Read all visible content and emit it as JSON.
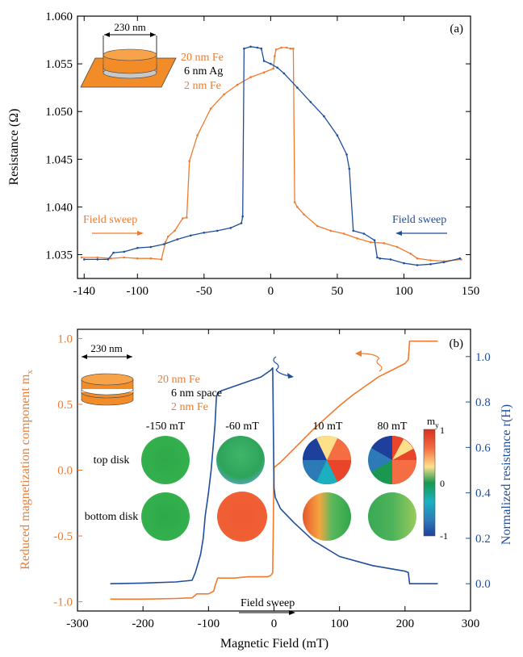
{
  "colors": {
    "orange": "#f07a2e",
    "blue": "#1f4e9c",
    "axis": "#000000",
    "disk_edge": "#444444"
  },
  "chart_data": [
    {
      "type": "line",
      "panel_label": "(a)",
      "ylabel": "Resistance (Ω)",
      "xlabel": "",
      "xlim": [
        -145,
        150
      ],
      "ylim": [
        1.0325,
        1.06
      ],
      "x_ticks": [
        -140,
        -100,
        -50,
        0,
        50,
        100,
        150
      ],
      "x_tick_labels": [
        "-140",
        "-100",
        "-50",
        "0",
        "50",
        "100",
        "150"
      ],
      "y_ticks": [
        1.035,
        1.04,
        1.045,
        1.05,
        1.055,
        1.06
      ],
      "y_tick_labels": [
        "1.035",
        "1.040",
        "1.045",
        "1.050",
        "1.055",
        "1.060"
      ],
      "grid": false,
      "series": [
        {
          "color": "orange",
          "x": [
            -142,
            -130,
            -120,
            -110,
            -100,
            -90,
            -82,
            -79,
            -77,
            -72,
            -66,
            -63,
            -61,
            -55,
            -45,
            -35,
            -25,
            -15,
            -5,
            2,
            3,
            4,
            8,
            12,
            15,
            17,
            18,
            20,
            25,
            35,
            45,
            55,
            65,
            75,
            85,
            95,
            105,
            110,
            120,
            130,
            143
          ],
          "y": [
            1.0347,
            1.0347,
            1.0346,
            1.0347,
            1.0346,
            1.0346,
            1.0345,
            1.0363,
            1.0369,
            1.0375,
            1.0388,
            1.0389,
            1.0448,
            1.0475,
            1.0503,
            1.0518,
            1.0528,
            1.0536,
            1.0541,
            1.0545,
            1.0558,
            1.0565,
            1.0567,
            1.0567,
            1.0566,
            1.0566,
            1.0405,
            1.04,
            1.0392,
            1.038,
            1.0375,
            1.0372,
            1.0367,
            1.0363,
            1.0362,
            1.0358,
            1.0351,
            1.0346,
            1.0344,
            1.0343,
            1.0345
          ]
        },
        {
          "color": "blue",
          "x": [
            -140,
            -130,
            -122,
            -118,
            -110,
            -100,
            -90,
            -80,
            -70,
            -60,
            -50,
            -40,
            -30,
            -22,
            -21,
            -20,
            -15,
            -10,
            -7,
            -5,
            0,
            5,
            10,
            20,
            30,
            40,
            50,
            57,
            59,
            62,
            70,
            78,
            80,
            82,
            90,
            100,
            110,
            120,
            130,
            142
          ],
          "y": [
            1.0345,
            1.0345,
            1.0345,
            1.0352,
            1.0353,
            1.0357,
            1.0358,
            1.0361,
            1.0366,
            1.037,
            1.0373,
            1.0375,
            1.0378,
            1.0383,
            1.039,
            1.0566,
            1.0568,
            1.0567,
            1.0566,
            1.0553,
            1.055,
            1.0546,
            1.054,
            1.0525,
            1.051,
            1.0495,
            1.0475,
            1.0455,
            1.044,
            1.0375,
            1.0372,
            1.0365,
            1.0347,
            1.0346,
            1.0345,
            1.0341,
            1.0339,
            1.034,
            1.0342,
            1.0346
          ]
        }
      ],
      "annotations": {
        "dimension": "230 nm",
        "layers": [
          "20 nm Fe",
          "6 nm Ag",
          "2 nm Fe"
        ],
        "sweep_left": "Field sweep",
        "sweep_right": "Field sweep"
      }
    },
    {
      "type": "line",
      "panel_label": "(b)",
      "xlabel": "Magnetic Field (mT)",
      "ylabel_left": "Reduced magnetization component m",
      "ylabel_left_sub": "x",
      "ylabel_right": "Normalized resistance r(H)",
      "xlim": [
        -300,
        300
      ],
      "ylim_left": [
        -1.07,
        1.07
      ],
      "ylim_right": [
        -0.12,
        1.12
      ],
      "x_ticks": [
        -300,
        -200,
        -100,
        0,
        100,
        200,
        300
      ],
      "x_tick_labels": [
        "-300",
        "-200",
        "-100",
        "0",
        "100",
        "200",
        "300"
      ],
      "y_ticks_left": [
        -1.0,
        -0.5,
        0.0,
        0.5,
        1.0
      ],
      "y_tick_labels_left": [
        "-1.0",
        "-0.5",
        "0.0",
        "0.5",
        "1.0"
      ],
      "y_ticks_right": [
        0.0,
        0.2,
        0.4,
        0.6,
        0.8,
        1.0
      ],
      "y_tick_labels_right": [
        "0.0",
        "0.2",
        "0.4",
        "0.6",
        "0.8",
        "1.0"
      ],
      "grid": false,
      "series": [
        {
          "color": "orange",
          "axis": "left",
          "x": [
            -250,
            -200,
            -150,
            -125,
            -120,
            -118,
            -100,
            -92,
            -90,
            -86,
            -80,
            -60,
            -40,
            -20,
            -10,
            -5,
            -2,
            0,
            10,
            20,
            40,
            60,
            80,
            100,
            120,
            140,
            160,
            180,
            200,
            205,
            207,
            210,
            230,
            250
          ],
          "y": [
            -0.98,
            -0.98,
            -0.975,
            -0.97,
            -0.95,
            -0.94,
            -0.94,
            -0.92,
            -0.88,
            -0.82,
            -0.82,
            -0.82,
            -0.81,
            -0.81,
            -0.81,
            -0.8,
            -0.78,
            0.02,
            0.06,
            0.11,
            0.21,
            0.31,
            0.4,
            0.49,
            0.57,
            0.64,
            0.71,
            0.76,
            0.81,
            0.84,
            0.98,
            0.98,
            0.98,
            0.98
          ]
        },
        {
          "color": "blue",
          "axis": "right",
          "x": [
            -250,
            -200,
            -150,
            -125,
            -120,
            -115,
            -112,
            -108,
            -105,
            -100,
            -96,
            -93,
            -90,
            -88,
            -86,
            -80,
            -60,
            -40,
            -20,
            -10,
            -5,
            -2,
            0,
            2,
            10,
            30,
            60,
            100,
            150,
            200,
            205,
            207,
            210,
            250
          ],
          "y": [
            0.0,
            0.003,
            0.008,
            0.015,
            0.05,
            0.1,
            0.13,
            0.2,
            0.3,
            0.4,
            0.5,
            0.6,
            0.7,
            0.82,
            0.84,
            0.85,
            0.87,
            0.89,
            0.91,
            0.93,
            0.94,
            0.95,
            0.42,
            0.38,
            0.33,
            0.27,
            0.19,
            0.12,
            0.08,
            0.055,
            0.05,
            0.0,
            0.0,
            0.0
          ]
        }
      ],
      "annotations": {
        "dimension": "230 nm",
        "layers": [
          "20 nm Fe",
          "6 nm space",
          "2 nm Fe"
        ],
        "sweep": "Field sweep",
        "disk_fields": [
          "-150 mT",
          "-60 mT",
          "10 mT",
          "80 mT"
        ],
        "row_labels": [
          "top disk",
          "bottom\ndisk"
        ],
        "colorbar_label": "m",
        "colorbar_label_sub": "y",
        "colorbar_ticks": [
          "1",
          "0",
          "-1"
        ]
      }
    }
  ]
}
